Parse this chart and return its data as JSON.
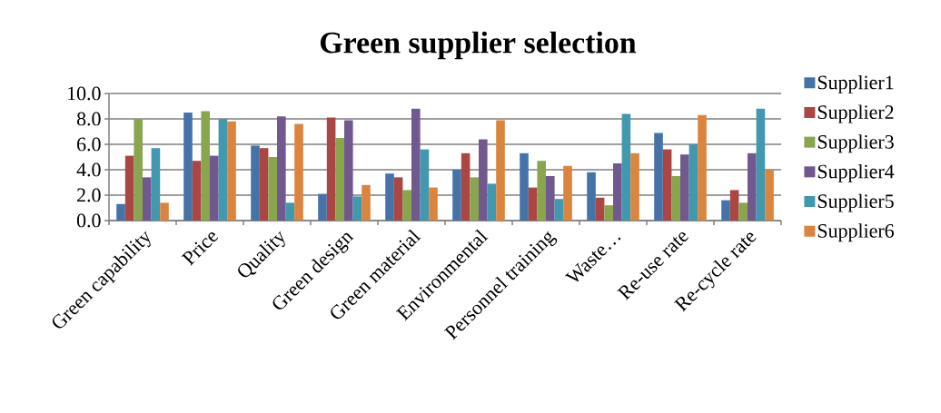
{
  "chart_data": {
    "type": "bar",
    "title": "Green supplier selection",
    "categories": [
      "Green capability",
      "Price",
      "Quality",
      "Green design",
      "Green material",
      "Environmental",
      "Personnel training",
      "Waste…",
      "Re-use rate",
      "Re-cycle rate"
    ],
    "series": [
      {
        "name": "Supplier1",
        "color": "#4572a7",
        "values": [
          1.3,
          8.5,
          5.9,
          2.1,
          3.7,
          4.0,
          5.3,
          3.8,
          6.9,
          1.6
        ]
      },
      {
        "name": "Supplier2",
        "color": "#aa4643",
        "values": [
          5.1,
          4.7,
          5.7,
          8.1,
          3.4,
          5.3,
          2.6,
          1.8,
          5.6,
          2.4
        ]
      },
      {
        "name": "Supplier3",
        "color": "#89a54e",
        "values": [
          8.0,
          8.6,
          5.0,
          6.5,
          2.4,
          3.4,
          4.7,
          1.2,
          3.5,
          1.4
        ]
      },
      {
        "name": "Supplier4",
        "color": "#71588f",
        "values": [
          3.4,
          5.1,
          8.2,
          7.9,
          8.8,
          6.4,
          3.5,
          4.5,
          5.2,
          5.3
        ]
      },
      {
        "name": "Supplier5",
        "color": "#4198af",
        "values": [
          5.7,
          8.0,
          1.4,
          1.9,
          5.6,
          2.9,
          1.7,
          8.4,
          6.0,
          8.8
        ]
      },
      {
        "name": "Supplier6",
        "color": "#db843d",
        "values": [
          1.4,
          7.8,
          7.6,
          2.8,
          2.6,
          7.9,
          4.3,
          5.3,
          8.3,
          4.0
        ]
      }
    ],
    "ylim": [
      0,
      10
    ],
    "yticks": [
      {
        "value": 0,
        "label": "0.0"
      },
      {
        "value": 2,
        "label": "2.0"
      },
      {
        "value": 4,
        "label": "4.0"
      },
      {
        "value": 6,
        "label": "6.0"
      },
      {
        "value": 8,
        "label": "8.0"
      },
      {
        "value": 10,
        "label": "10.0"
      }
    ],
    "grid": "y",
    "legend": "right"
  }
}
